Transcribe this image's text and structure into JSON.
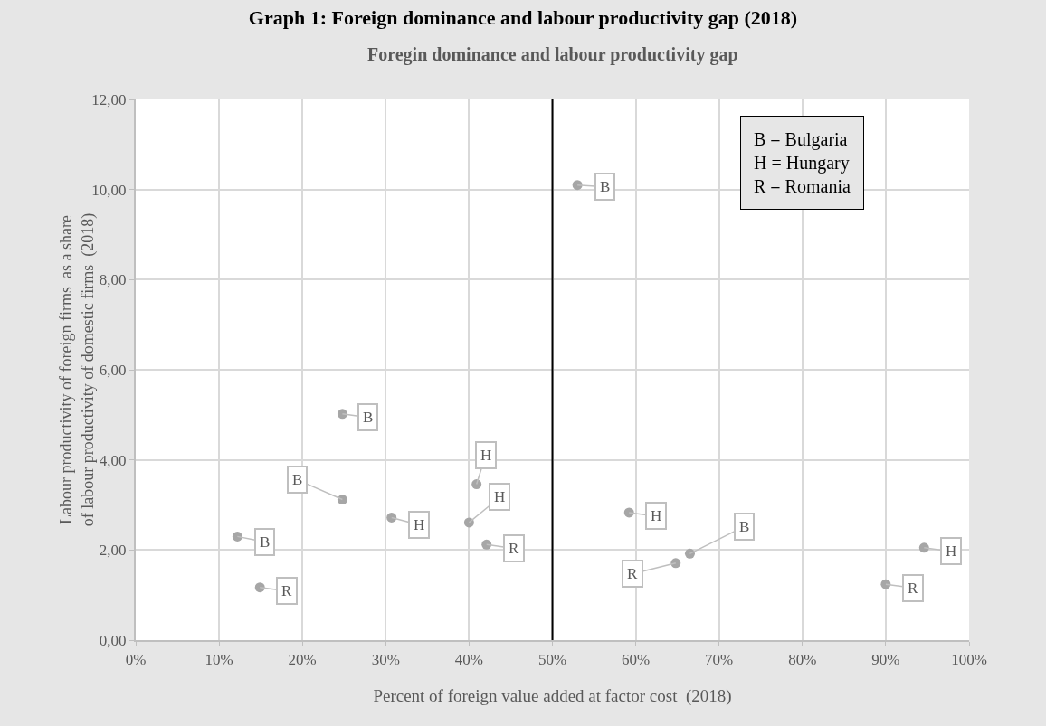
{
  "chart_data": {
    "type": "scatter",
    "title": "Graph 1: Foreign dominance and labour productivity gap (2018)",
    "subtitle": "Foregin dominance and labour productivity gap",
    "xlabel": "Percent of foreign value added at factor cost  (2018)",
    "ylabel": "Labour productivity of foreign firms  as a share of labour productivity of domestic firms  (2018)",
    "x": [
      24.8,
      24.8,
      30.7,
      40.9,
      40.0,
      42.1,
      12.2,
      14.9,
      53.0,
      59.2,
      64.8,
      66.5,
      90.0,
      94.6
    ],
    "values": [
      5.02,
      3.12,
      2.72,
      3.46,
      2.61,
      2.12,
      2.3,
      1.17,
      10.1,
      2.83,
      1.71,
      1.92,
      1.24,
      2.05
    ],
    "color": "#a6a6a6",
    "marker": "circle",
    "xlim": [
      0,
      100
    ],
    "xticks": [
      {
        "value": 0,
        "label": "0%"
      },
      {
        "value": 10,
        "label": "10%"
      },
      {
        "value": 20,
        "label": "20%"
      },
      {
        "value": 30,
        "label": "30%"
      },
      {
        "value": 40,
        "label": "40%"
      },
      {
        "value": 50,
        "label": "50%"
      },
      {
        "value": 60,
        "label": "60%"
      },
      {
        "value": 70,
        "label": "70%"
      },
      {
        "value": 80,
        "label": "80%"
      },
      {
        "value": 90,
        "label": "90%"
      },
      {
        "value": 100,
        "label": "100%"
      }
    ],
    "ylim": [
      0,
      12
    ],
    "yticks": [
      {
        "value": 0,
        "label": "0,00"
      },
      {
        "value": 2,
        "label": "2,00"
      },
      {
        "value": 4,
        "label": "4,00"
      },
      {
        "value": 6,
        "label": "6,00"
      },
      {
        "value": 8,
        "label": "8,00"
      },
      {
        "value": 10,
        "label": "10,00"
      },
      {
        "value": 12,
        "label": "12,00"
      }
    ],
    "grid": true,
    "ref_lines": [
      {
        "axis": "x",
        "value": 50,
        "color": "#000000"
      }
    ],
    "annotations": [
      {
        "text": "B",
        "x": 24.8,
        "y": 5.02
      },
      {
        "text": "B",
        "x": 24.8,
        "y": 3.12
      },
      {
        "text": "H",
        "x": 30.7,
        "y": 2.72
      },
      {
        "text": "H",
        "x": 40.9,
        "y": 3.46
      },
      {
        "text": "H",
        "x": 40.0,
        "y": 2.61
      },
      {
        "text": "R",
        "x": 42.1,
        "y": 2.12
      },
      {
        "text": "B",
        "x": 12.2,
        "y": 2.3
      },
      {
        "text": "R",
        "x": 14.9,
        "y": 1.17
      },
      {
        "text": "B",
        "x": 53.0,
        "y": 10.1
      },
      {
        "text": "H",
        "x": 59.2,
        "y": 2.83
      },
      {
        "text": "R",
        "x": 64.8,
        "y": 1.71
      },
      {
        "text": "B",
        "x": 66.5,
        "y": 1.92
      },
      {
        "text": "R",
        "x": 90.0,
        "y": 1.24
      },
      {
        "text": "H",
        "x": 94.6,
        "y": 2.05
      },
      "B = Bulgaria\nH = Hungary\nR = Romania"
    ]
  }
}
